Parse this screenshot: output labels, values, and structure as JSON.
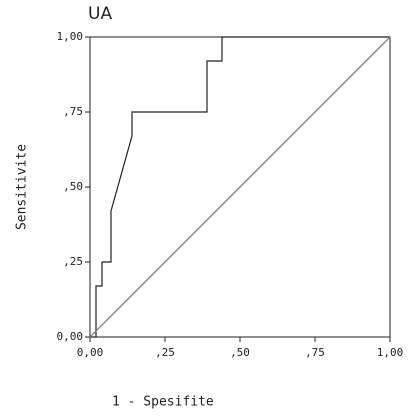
{
  "chart_data": {
    "type": "line",
    "title": "UA",
    "x_label": "1 - Spesifite",
    "y_label": "Sensitivite",
    "xlim": [
      0,
      1
    ],
    "ylim": [
      0,
      1
    ],
    "xticks": [
      {
        "value": 0,
        "label": "0,00"
      },
      {
        "value": 0.25,
        "label": ",25"
      },
      {
        "value": 0.5,
        "label": ",50"
      },
      {
        "value": 0.75,
        "label": ",75"
      },
      {
        "value": 1,
        "label": "1,00"
      }
    ],
    "yticks": [
      {
        "value": 0,
        "label": "0,00"
      },
      {
        "value": 0.25,
        "label": ",25"
      },
      {
        "value": 0.5,
        "label": ",50"
      },
      {
        "value": 0.75,
        "label": ",75"
      },
      {
        "value": 1,
        "label": "1,00"
      }
    ],
    "series": [
      {
        "color": "#222222",
        "x": [
          0,
          0.02,
          0.02,
          0.04,
          0.04,
          0.07,
          0.07,
          0.14,
          0.14,
          0.39,
          0.39,
          0.44,
          0.44,
          1
        ],
        "values": [
          0,
          0,
          0.17,
          0.17,
          0.25,
          0.25,
          0.42,
          0.67,
          0.75,
          0.75,
          0.92,
          0.92,
          1,
          1
        ]
      },
      {
        "color": "#777777",
        "x": [
          0,
          1
        ],
        "values": [
          0,
          1
        ]
      }
    ]
  }
}
